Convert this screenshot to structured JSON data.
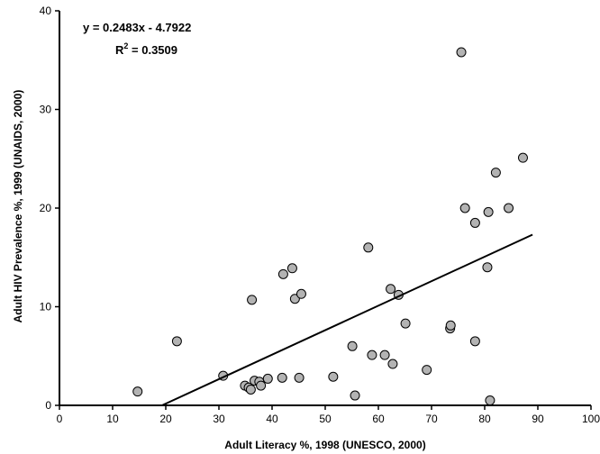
{
  "chart_data": {
    "type": "scatter",
    "xlabel": "Adult Literacy %, 1998 (UNESCO, 2000)",
    "ylabel": "Adult HIV Prevalence %, 1999 (UNAIDS, 2000)",
    "xlim": [
      0,
      100
    ],
    "ylim": [
      0,
      40
    ],
    "xticks": [
      "0",
      "10",
      "20",
      "30",
      "40",
      "50",
      "60",
      "70",
      "80",
      "90",
      "100"
    ],
    "yticks": [
      "0",
      "10",
      "20",
      "30",
      "40"
    ],
    "grid": false,
    "annotations": {
      "equation": "y = 0.2483x - 4.7922",
      "r2_prefix": "R",
      "r2_sup": "2",
      "r2_value": " = 0.3509"
    },
    "trendline": {
      "slope": 0.2483,
      "intercept": -4.7922,
      "x_range": [
        19.3,
        89
      ]
    },
    "marker_fill": "#b3b3b3",
    "marker_stroke": "#000000",
    "points": [
      [
        14.7,
        1.4
      ],
      [
        22.1,
        6.5
      ],
      [
        30.8,
        3.0
      ],
      [
        34.9,
        2.0
      ],
      [
        35.6,
        1.8
      ],
      [
        36.0,
        1.6
      ],
      [
        36.2,
        10.7
      ],
      [
        36.7,
        2.5
      ],
      [
        37.6,
        2.4
      ],
      [
        37.9,
        2.0
      ],
      [
        39.2,
        2.7
      ],
      [
        41.9,
        2.8
      ],
      [
        42.1,
        13.3
      ],
      [
        43.8,
        13.9
      ],
      [
        44.3,
        10.8
      ],
      [
        45.1,
        2.8
      ],
      [
        45.5,
        11.3
      ],
      [
        51.5,
        2.9
      ],
      [
        55.1,
        6.0
      ],
      [
        55.6,
        1.0
      ],
      [
        58.1,
        16.0
      ],
      [
        58.8,
        5.1
      ],
      [
        61.2,
        5.1
      ],
      [
        62.3,
        11.8
      ],
      [
        62.7,
        4.2
      ],
      [
        63.8,
        11.2
      ],
      [
        65.1,
        8.3
      ],
      [
        69.1,
        3.6
      ],
      [
        73.5,
        7.8
      ],
      [
        73.6,
        8.1
      ],
      [
        75.6,
        35.8
      ],
      [
        76.3,
        20.0
      ],
      [
        78.2,
        18.5
      ],
      [
        78.2,
        6.5
      ],
      [
        80.5,
        14.0
      ],
      [
        80.7,
        19.6
      ],
      [
        81.0,
        0.5
      ],
      [
        82.1,
        23.6
      ],
      [
        84.5,
        20.0
      ],
      [
        87.2,
        25.1
      ]
    ]
  }
}
